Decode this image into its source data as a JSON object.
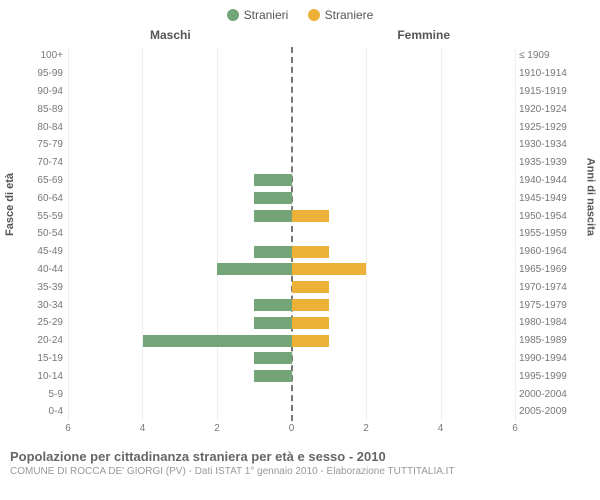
{
  "legend": {
    "male": {
      "label": "Stranieri",
      "color": "#74a578"
    },
    "female": {
      "label": "Straniere",
      "color": "#eeb137"
    }
  },
  "headers": {
    "left": "Maschi",
    "right": "Femmine",
    "y_left": "Fasce di età",
    "y_right": "Anni di nascita"
  },
  "chart": {
    "type": "population-pyramid",
    "x_max": 6,
    "x_ticks": [
      6,
      4,
      2,
      0,
      2,
      4,
      6
    ],
    "grid_color": "#eeeeee",
    "center_line_color": "#777777",
    "bar_male_color": "#74a578",
    "bar_female_color": "#eeb137",
    "background_color": "#ffffff",
    "rows": [
      {
        "age": "100+",
        "birth": "≤ 1909",
        "m": 0,
        "f": 0
      },
      {
        "age": "95-99",
        "birth": "1910-1914",
        "m": 0,
        "f": 0
      },
      {
        "age": "90-94",
        "birth": "1915-1919",
        "m": 0,
        "f": 0
      },
      {
        "age": "85-89",
        "birth": "1920-1924",
        "m": 0,
        "f": 0
      },
      {
        "age": "80-84",
        "birth": "1925-1929",
        "m": 0,
        "f": 0
      },
      {
        "age": "75-79",
        "birth": "1930-1934",
        "m": 0,
        "f": 0
      },
      {
        "age": "70-74",
        "birth": "1935-1939",
        "m": 0,
        "f": 0
      },
      {
        "age": "65-69",
        "birth": "1940-1944",
        "m": 1,
        "f": 0
      },
      {
        "age": "60-64",
        "birth": "1945-1949",
        "m": 1,
        "f": 0
      },
      {
        "age": "55-59",
        "birth": "1950-1954",
        "m": 1,
        "f": 1
      },
      {
        "age": "50-54",
        "birth": "1955-1959",
        "m": 0,
        "f": 0
      },
      {
        "age": "45-49",
        "birth": "1960-1964",
        "m": 1,
        "f": 1
      },
      {
        "age": "40-44",
        "birth": "1965-1969",
        "m": 2,
        "f": 2
      },
      {
        "age": "35-39",
        "birth": "1970-1974",
        "m": 0,
        "f": 1
      },
      {
        "age": "30-34",
        "birth": "1975-1979",
        "m": 1,
        "f": 1
      },
      {
        "age": "25-29",
        "birth": "1980-1984",
        "m": 1,
        "f": 1
      },
      {
        "age": "20-24",
        "birth": "1985-1989",
        "m": 4,
        "f": 1
      },
      {
        "age": "15-19",
        "birth": "1990-1994",
        "m": 1,
        "f": 0
      },
      {
        "age": "10-14",
        "birth": "1995-1999",
        "m": 1,
        "f": 0
      },
      {
        "age": "5-9",
        "birth": "2000-2004",
        "m": 0,
        "f": 0
      },
      {
        "age": "0-4",
        "birth": "2005-2009",
        "m": 0,
        "f": 0
      }
    ]
  },
  "footer": {
    "title": "Popolazione per cittadinanza straniera per età e sesso - 2010",
    "subtitle": "COMUNE DI ROCCA DE' GIORGI (PV) - Dati ISTAT 1° gennaio 2010 - Elaborazione TUTTITALIA.IT"
  }
}
